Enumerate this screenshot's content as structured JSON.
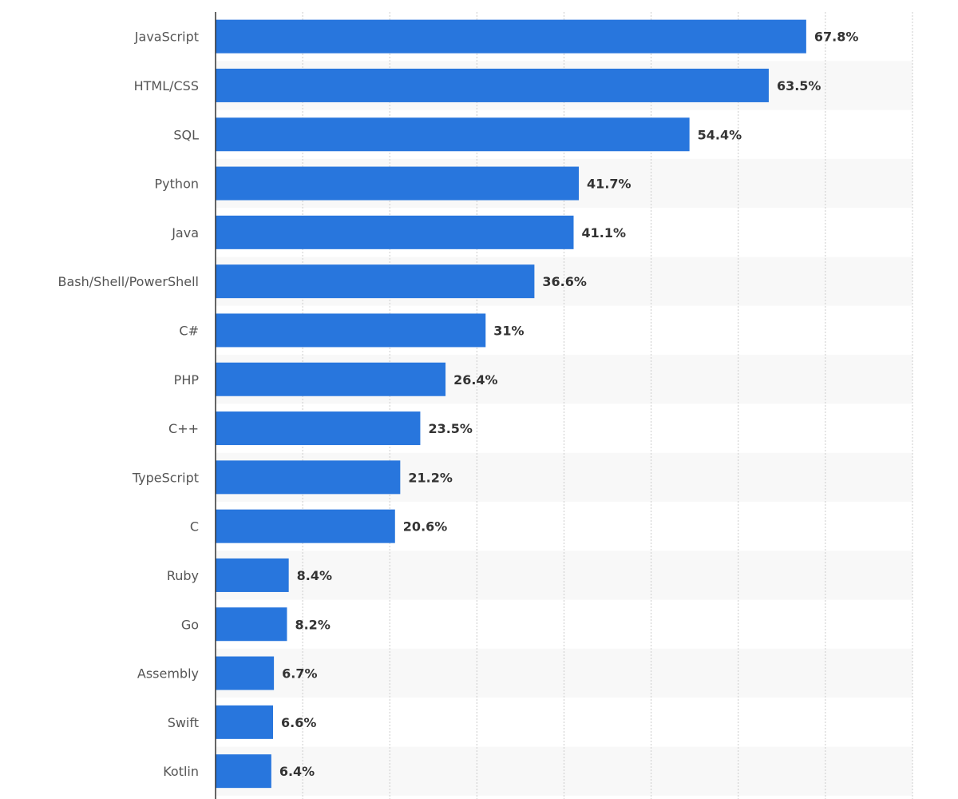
{
  "chart_data": {
    "type": "bar",
    "orientation": "horizontal",
    "categories": [
      "JavaScript",
      "HTML/CSS",
      "SQL",
      "Python",
      "Java",
      "Bash/Shell/PowerShell",
      "C#",
      "PHP",
      "C++",
      "TypeScript",
      "C",
      "Ruby",
      "Go",
      "Assembly",
      "Swift",
      "Kotlin"
    ],
    "values": [
      67.8,
      63.5,
      54.4,
      41.7,
      41.1,
      36.6,
      31,
      26.4,
      23.5,
      21.2,
      20.6,
      8.4,
      8.2,
      6.7,
      6.6,
      6.4
    ],
    "labels": [
      "67.8%",
      "63.5%",
      "54.4%",
      "41.7%",
      "41.1%",
      "36.6%",
      "31%",
      "26.4%",
      "23.5%",
      "21.2%",
      "20.6%",
      "8.4%",
      "8.2%",
      "6.7%",
      "6.6%",
      "6.4%"
    ],
    "xlim": [
      0,
      80
    ],
    "grid": true,
    "bar_color": "#2876dd",
    "band_color": "#f8f8f8"
  }
}
